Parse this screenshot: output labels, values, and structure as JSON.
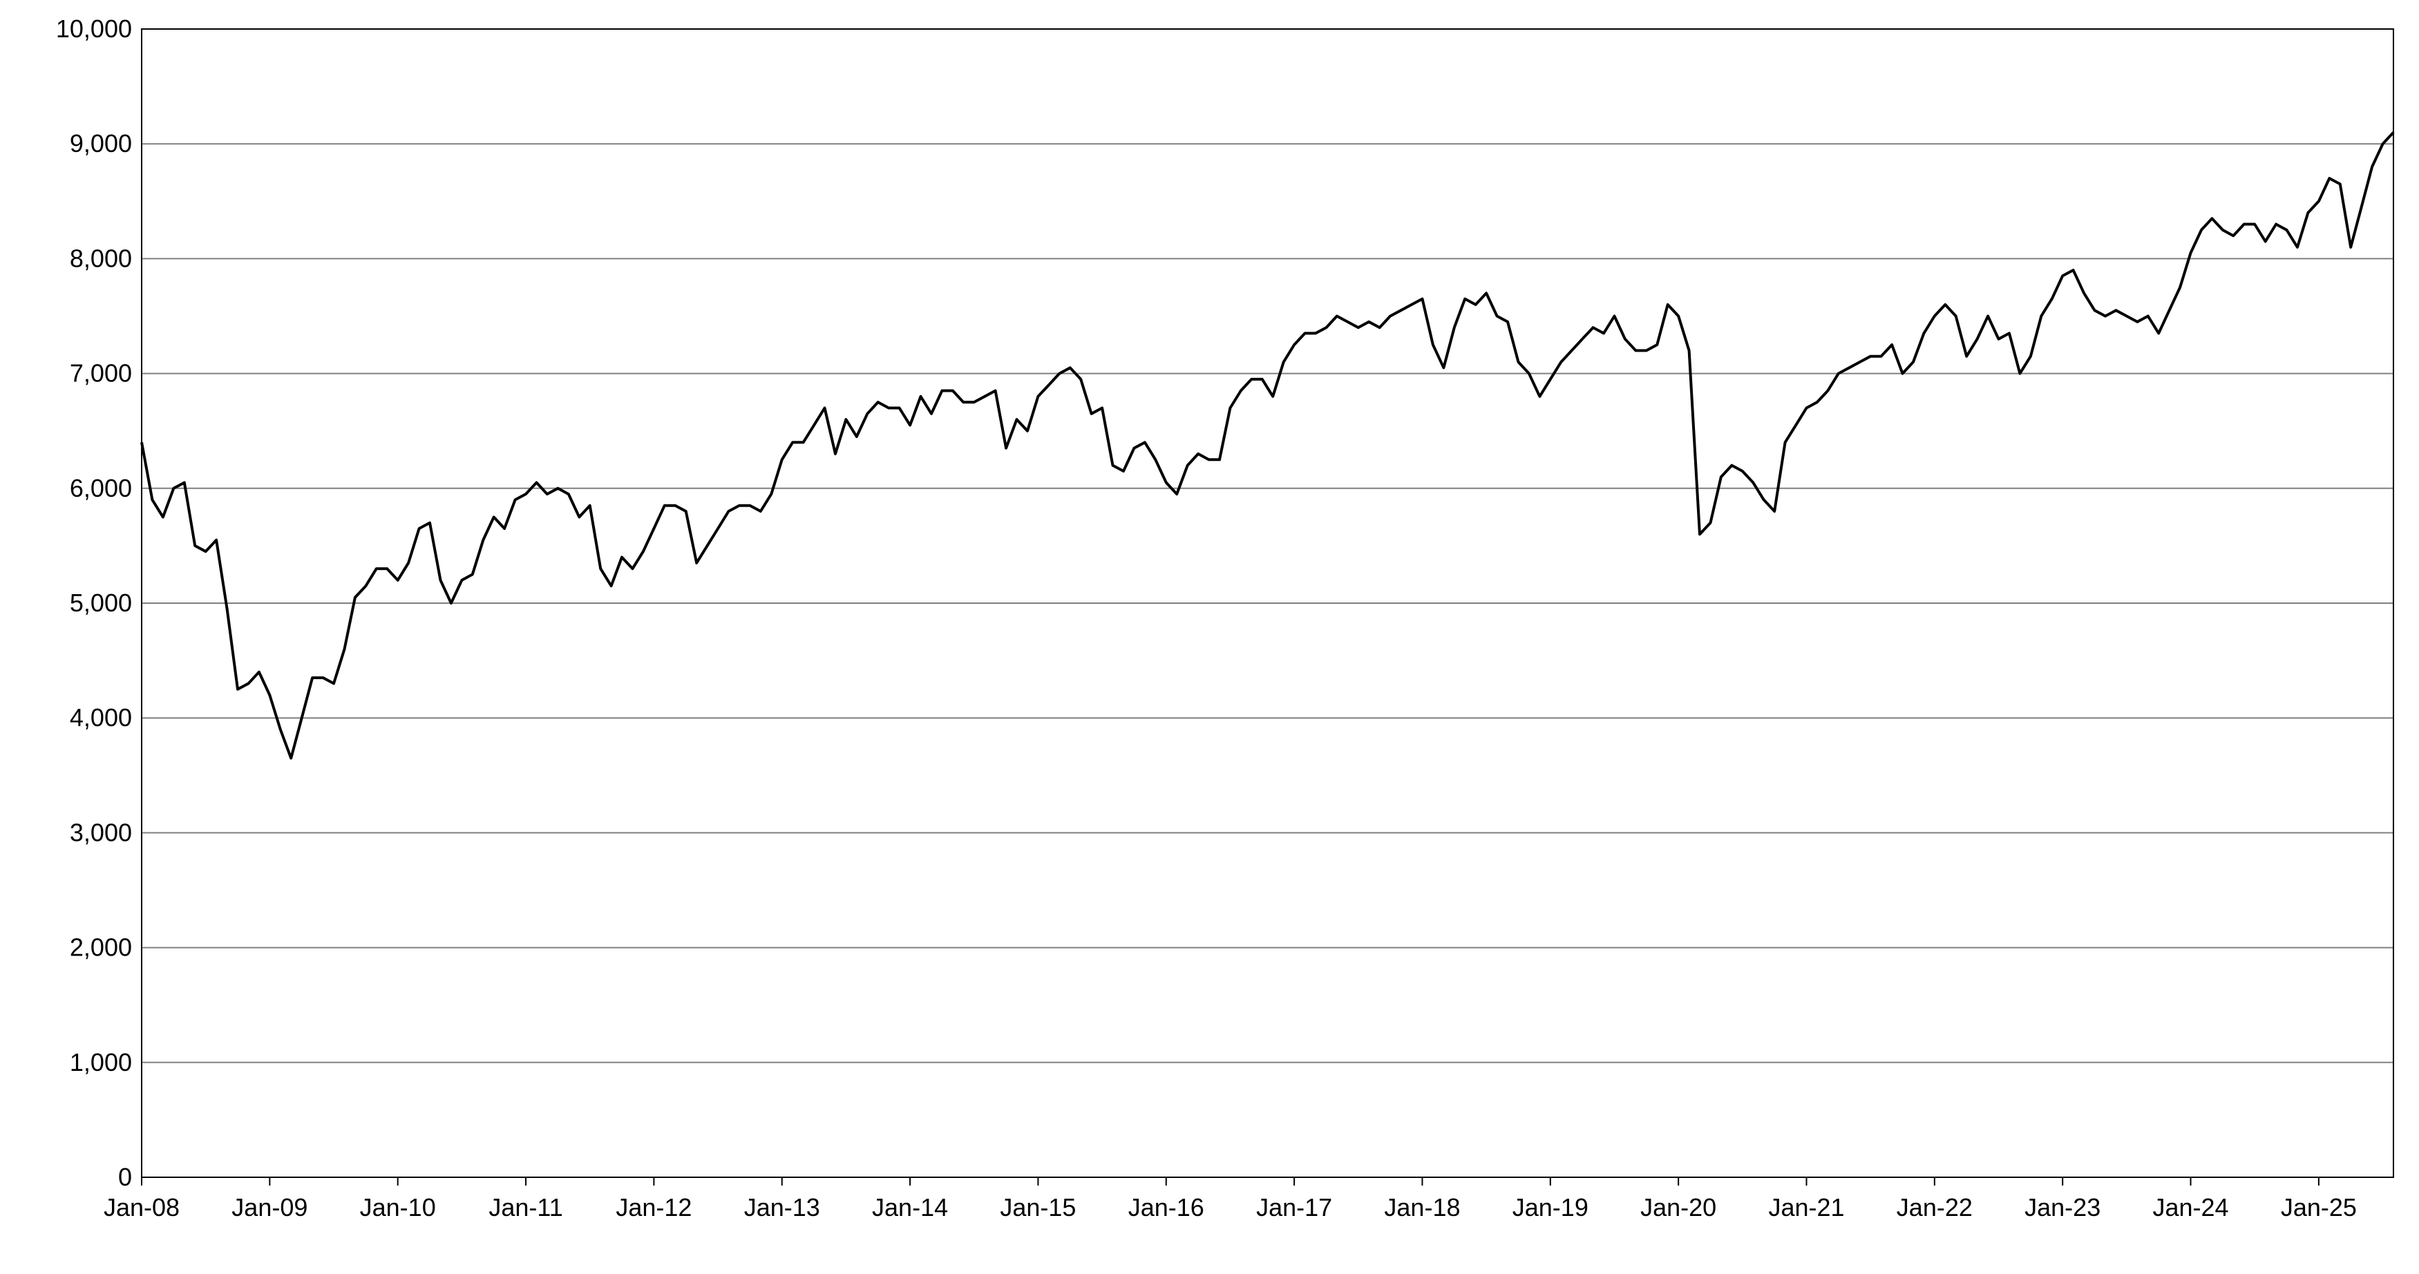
{
  "chart_data": {
    "type": "line",
    "title": "",
    "xlabel": "",
    "ylabel": "",
    "ylim": [
      0,
      10000
    ],
    "y_ticks": [
      0,
      1000,
      2000,
      3000,
      4000,
      5000,
      6000,
      7000,
      8000,
      9000,
      10000
    ],
    "y_tick_labels": [
      "0",
      "1,000",
      "2,000",
      "3,000",
      "4,000",
      "5,000",
      "6,000",
      "7,000",
      "8,000",
      "9,000",
      "10,000"
    ],
    "x_range": [
      "2008-01",
      "2025-08"
    ],
    "x_ticks": [
      "2008-01",
      "2009-01",
      "2010-01",
      "2011-01",
      "2012-01",
      "2013-01",
      "2014-01",
      "2015-01",
      "2016-01",
      "2017-01",
      "2018-01",
      "2019-01",
      "2020-01",
      "2021-01",
      "2022-01",
      "2023-01",
      "2024-01",
      "2025-01"
    ],
    "x_tick_labels": [
      "Jan-08",
      "Jan-09",
      "Jan-10",
      "Jan-11",
      "Jan-12",
      "Jan-13",
      "Jan-14",
      "Jan-15",
      "Jan-16",
      "Jan-17",
      "Jan-18",
      "Jan-19",
      "Jan-20",
      "Jan-21",
      "Jan-22",
      "Jan-23",
      "Jan-24",
      "Jan-25"
    ],
    "grid": "horizontal",
    "legend": "none",
    "line_color": "#000000",
    "grid_color": "#808080",
    "series": [
      {
        "x": [
          "2008-01",
          "2008-02",
          "2008-03",
          "2008-04",
          "2008-05",
          "2008-06",
          "2008-07",
          "2008-08",
          "2008-09",
          "2008-10",
          "2008-11",
          "2008-12",
          "2009-01",
          "2009-02",
          "2009-03",
          "2009-04",
          "2009-05",
          "2009-06",
          "2009-07",
          "2009-08",
          "2009-09",
          "2009-10",
          "2009-11",
          "2009-12",
          "2010-01",
          "2010-02",
          "2010-03",
          "2010-04",
          "2010-05",
          "2010-06",
          "2010-07",
          "2010-08",
          "2010-09",
          "2010-10",
          "2010-11",
          "2010-12",
          "2011-01",
          "2011-02",
          "2011-03",
          "2011-04",
          "2011-05",
          "2011-06",
          "2011-07",
          "2011-08",
          "2011-09",
          "2011-10",
          "2011-11",
          "2011-12",
          "2012-01",
          "2012-02",
          "2012-03",
          "2012-04",
          "2012-05",
          "2012-06",
          "2012-07",
          "2012-08",
          "2012-09",
          "2012-10",
          "2012-11",
          "2012-12",
          "2013-01",
          "2013-02",
          "2013-03",
          "2013-04",
          "2013-05",
          "2013-06",
          "2013-07",
          "2013-08",
          "2013-09",
          "2013-10",
          "2013-11",
          "2013-12",
          "2014-01",
          "2014-02",
          "2014-03",
          "2014-04",
          "2014-05",
          "2014-06",
          "2014-07",
          "2014-08",
          "2014-09",
          "2014-10",
          "2014-11",
          "2014-12",
          "2015-01",
          "2015-02",
          "2015-03",
          "2015-04",
          "2015-05",
          "2015-06",
          "2015-07",
          "2015-08",
          "2015-09",
          "2015-10",
          "2015-11",
          "2015-12",
          "2016-01",
          "2016-02",
          "2016-03",
          "2016-04",
          "2016-05",
          "2016-06",
          "2016-07",
          "2016-08",
          "2016-09",
          "2016-10",
          "2016-11",
          "2016-12",
          "2017-01",
          "2017-02",
          "2017-03",
          "2017-04",
          "2017-05",
          "2017-06",
          "2017-07",
          "2017-08",
          "2017-09",
          "2017-10",
          "2017-11",
          "2017-12",
          "2018-01",
          "2018-02",
          "2018-03",
          "2018-04",
          "2018-05",
          "2018-06",
          "2018-07",
          "2018-08",
          "2018-09",
          "2018-10",
          "2018-11",
          "2018-12",
          "2019-01",
          "2019-02",
          "2019-03",
          "2019-04",
          "2019-05",
          "2019-06",
          "2019-07",
          "2019-08",
          "2019-09",
          "2019-10",
          "2019-11",
          "2019-12",
          "2020-01",
          "2020-02",
          "2020-03",
          "2020-04",
          "2020-05",
          "2020-06",
          "2020-07",
          "2020-08",
          "2020-09",
          "2020-10",
          "2020-11",
          "2020-12",
          "2021-01",
          "2021-02",
          "2021-03",
          "2021-04",
          "2021-05",
          "2021-06",
          "2021-07",
          "2021-08",
          "2021-09",
          "2021-10",
          "2021-11",
          "2021-12",
          "2022-01",
          "2022-02",
          "2022-03",
          "2022-04",
          "2022-05",
          "2022-06",
          "2022-07",
          "2022-08",
          "2022-09",
          "2022-10",
          "2022-11",
          "2022-12",
          "2023-01",
          "2023-02",
          "2023-03",
          "2023-04",
          "2023-05",
          "2023-06",
          "2023-07",
          "2023-08",
          "2023-09",
          "2023-10",
          "2023-11",
          "2023-12",
          "2024-01",
          "2024-02",
          "2024-03",
          "2024-04",
          "2024-05",
          "2024-06",
          "2024-07",
          "2024-08",
          "2024-09",
          "2024-10",
          "2024-11",
          "2024-12",
          "2025-01",
          "2025-02",
          "2025-03",
          "2025-04",
          "2025-05",
          "2025-06",
          "2025-07",
          "2025-08"
        ],
        "values": [
          6400,
          5900,
          5750,
          6000,
          6050,
          5500,
          5450,
          5550,
          4950,
          4250,
          4300,
          4400,
          4200,
          3900,
          3650,
          4000,
          4350,
          4350,
          4300,
          4600,
          5050,
          5150,
          5300,
          5300,
          5200,
          5350,
          5650,
          5700,
          5200,
          5000,
          5200,
          5250,
          5550,
          5750,
          5650,
          5900,
          5950,
          6050,
          5950,
          6000,
          5950,
          5750,
          5850,
          5300,
          5150,
          5400,
          5300,
          5450,
          5650,
          5850,
          5850,
          5800,
          5350,
          5500,
          5650,
          5800,
          5850,
          5850,
          5800,
          5950,
          6250,
          6400,
          6400,
          6550,
          6700,
          6300,
          6600,
          6450,
          6650,
          6750,
          6700,
          6700,
          6550,
          6800,
          6650,
          6850,
          6850,
          6750,
          6750,
          6800,
          6850,
          6350,
          6600,
          6500,
          6800,
          6900,
          7000,
          7050,
          6950,
          6650,
          6700,
          6200,
          6150,
          6350,
          6400,
          6250,
          6050,
          5950,
          6200,
          6300,
          6250,
          6250,
          6700,
          6850,
          6950,
          6950,
          6800,
          7100,
          7250,
          7350,
          7350,
          7400,
          7500,
          7450,
          7400,
          7450,
          7400,
          7500,
          7550,
          7600,
          7650,
          7250,
          7050,
          7400,
          7650,
          7600,
          7700,
          7500,
          7450,
          7100,
          7000,
          6800,
          6950,
          7100,
          7200,
          7300,
          7400,
          7350,
          7500,
          7300,
          7200,
          7200,
          7250,
          7600,
          7500,
          7200,
          5600,
          5700,
          6100,
          6200,
          6150,
          6050,
          5900,
          5800,
          6400,
          6550,
          6700,
          6750,
          6850,
          7000,
          7050,
          7100,
          7150,
          7150,
          7250,
          7000,
          7100,
          7350,
          7500,
          7600,
          7500,
          7150,
          7300,
          7500,
          7300,
          7350,
          7000,
          7150,
          7500,
          7650,
          7850,
          7900,
          7700,
          7550,
          7500,
          7550,
          7500,
          7450,
          7500,
          7350,
          7550,
          7750,
          8050,
          8250,
          8350,
          8250,
          8200,
          8300,
          8300,
          8150,
          8300,
          8250,
          8100,
          8400,
          8500,
          8700,
          8650,
          8100,
          8450,
          8800,
          9000,
          9100
        ]
      }
    ]
  }
}
